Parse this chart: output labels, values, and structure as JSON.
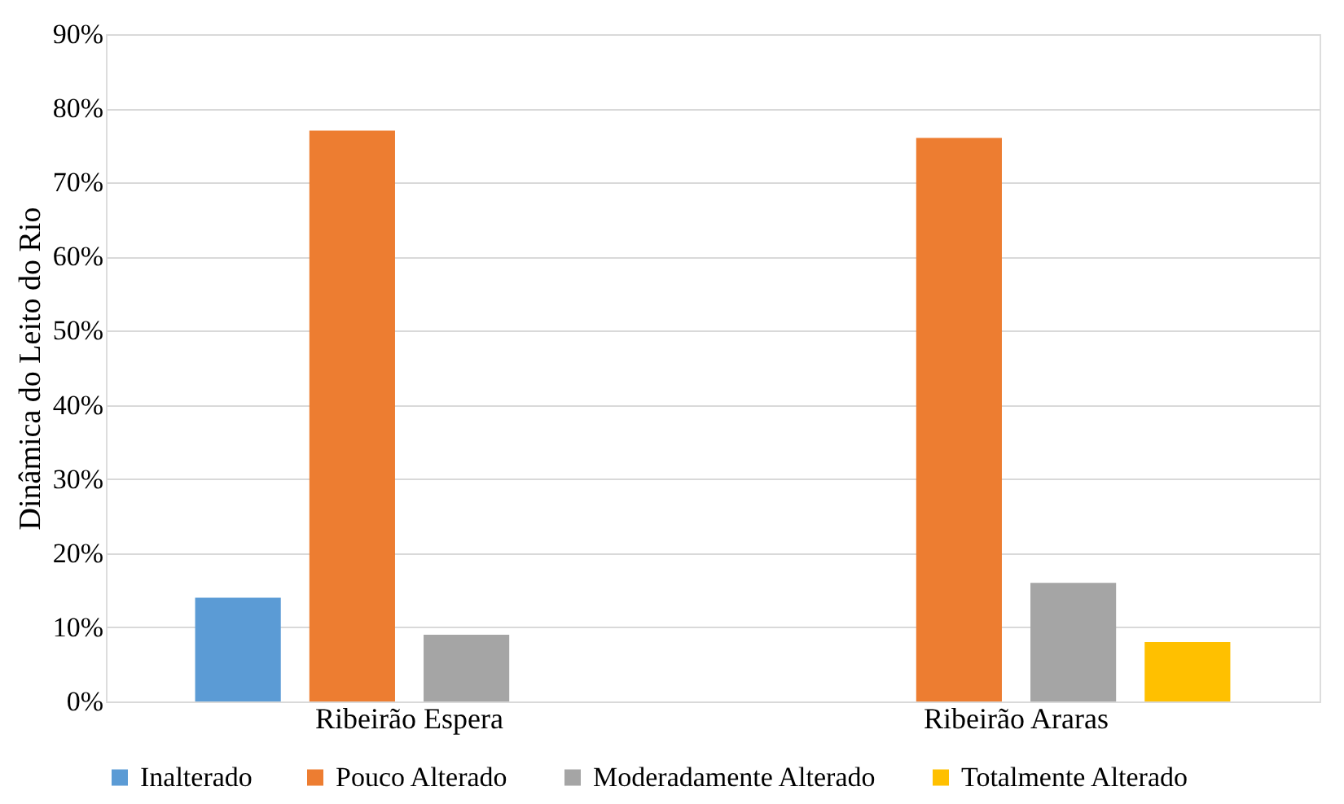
{
  "chart_data": {
    "type": "bar",
    "ylabel": "Dinâmica do Leito do Rio",
    "categories": [
      "Ribeirão Espera",
      "Ribeirão Araras"
    ],
    "series": [
      {
        "name": "Inalterado",
        "color": "#5b9bd5",
        "values": [
          14,
          null
        ]
      },
      {
        "name": "Pouco Alterado",
        "color": "#ed7d31",
        "values": [
          77,
          76
        ]
      },
      {
        "name": "Moderadamente Alterado",
        "color": "#a5a5a5",
        "values": [
          9,
          16
        ]
      },
      {
        "name": "Totalmente Alterado",
        "color": "#ffc000",
        "values": [
          null,
          8
        ]
      }
    ],
    "ylim": [
      0,
      90
    ],
    "yticks": [
      {
        "value": 0,
        "label": "0%"
      },
      {
        "value": 10,
        "label": "10%"
      },
      {
        "value": 20,
        "label": "20%"
      },
      {
        "value": 30,
        "label": "30%"
      },
      {
        "value": 40,
        "label": "40%"
      },
      {
        "value": 50,
        "label": "50%"
      },
      {
        "value": 60,
        "label": "60%"
      },
      {
        "value": 70,
        "label": "70%"
      },
      {
        "value": 80,
        "label": "80%"
      },
      {
        "value": 90,
        "label": "90%"
      }
    ],
    "grid": "y",
    "legend": "bottom"
  }
}
